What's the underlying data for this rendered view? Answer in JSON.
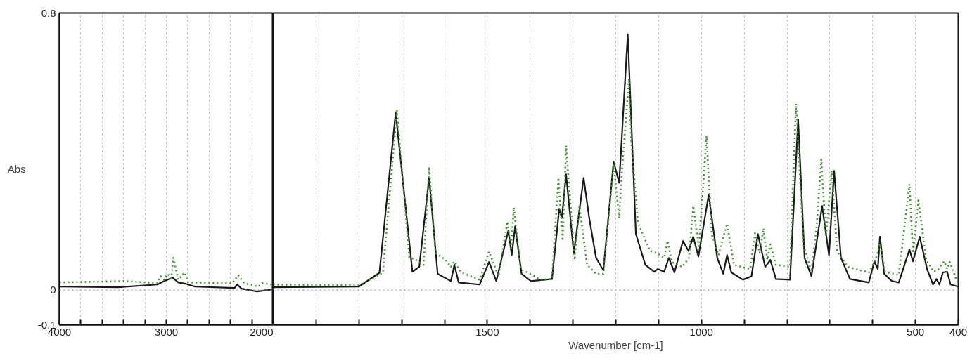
{
  "chart_data": [
    {
      "type": "line",
      "ylabel": "Abs",
      "xlim": [
        4000,
        2000
      ],
      "ylim": [
        -0.1,
        0.8
      ],
      "xticks": [
        4000,
        {
          "value": 3800,
          "label": null
        },
        {
          "value": 3600,
          "label": null
        },
        {
          "value": 3400,
          "label": null
        },
        {
          "value": 3200,
          "label": null
        },
        3000,
        {
          "value": 2800,
          "label": null
        },
        {
          "value": 2600,
          "label": null
        },
        {
          "value": 2400,
          "label": null
        },
        {
          "value": 2200,
          "label": null
        },
        2000
      ],
      "yticks": [
        -0.1,
        0,
        0.8
      ],
      "grid": "x",
      "ref_lines": [
        {
          "axis": "y",
          "value": 0,
          "color": "#999999",
          "line_style": "dotted"
        }
      ],
      "series": [
        {
          "color": "#1a1a1a",
          "line_style": "solid",
          "x": [
            4000,
            3980,
            3454,
            3085,
            3020,
            2941,
            2888,
            2829,
            2730,
            2362,
            2336,
            2296,
            2151,
            2007,
            2000
          ],
          "values": [
            0.01,
            0.01,
            0.008,
            0.016,
            0.026,
            0.036,
            0.022,
            0.019,
            0.01,
            0.006,
            0.016,
            0.004,
            -0.004,
            0.002,
            0.004
          ]
        },
        {
          "color": "#3c9a2c",
          "line_style": "dotted",
          "x": [
            4000,
            3388,
            3085,
            3053,
            3020,
            2987,
            2954,
            2934,
            2888,
            2829,
            2796,
            2382,
            2329,
            2270,
            2138,
            2105,
            2013,
            2000
          ],
          "values": [
            0.022,
            0.026,
            0.02,
            0.04,
            0.03,
            0.047,
            0.034,
            0.093,
            0.03,
            0.051,
            0.022,
            0.02,
            0.043,
            0.02,
            0.01,
            0.02,
            0.016,
            0.016
          ]
        }
      ]
    },
    {
      "type": "line",
      "xlabel": "Wavenumber [cm-1]",
      "xlim": [
        2000,
        400
      ],
      "ylim": [
        -0.1,
        0.8
      ],
      "tick_labels": "x",
      "xticks": [
        {
          "value": 2000,
          "label": null
        },
        {
          "value": 1900,
          "label": null
        },
        {
          "value": 1800,
          "label": null
        },
        {
          "value": 1700,
          "label": null
        },
        {
          "value": 1600,
          "label": null
        },
        1500,
        {
          "value": 1400,
          "label": null
        },
        {
          "value": 1300,
          "label": null
        },
        {
          "value": 1200,
          "label": null
        },
        {
          "value": 1100,
          "label": null
        },
        1000,
        {
          "value": 900,
          "label": null
        },
        {
          "value": 800,
          "label": null
        },
        {
          "value": 700,
          "label": null
        },
        {
          "value": 600,
          "label": null
        },
        500,
        400
      ],
      "yticks": [
        -0.1,
        0,
        0.8
      ],
      "grid": "x",
      "ref_lines": [
        {
          "axis": "y",
          "value": 0,
          "color": "#999999",
          "line_style": "dotted"
        }
      ],
      "series": [
        {
          "color": "#1a1a1a",
          "line_style": "solid",
          "x": [
            2000,
            1800,
            1752,
            1714,
            1675,
            1659,
            1636,
            1616,
            1585,
            1577,
            1567,
            1518,
            1496,
            1479,
            1451,
            1443,
            1435,
            1420,
            1398,
            1349,
            1332,
            1326,
            1316,
            1298,
            1275,
            1262,
            1246,
            1229,
            1205,
            1192,
            1172,
            1153,
            1131,
            1110,
            1102,
            1087,
            1076,
            1063,
            1043,
            1030,
            1019,
            1007,
            983,
            963,
            949,
            940,
            930,
            903,
            883,
            868,
            851,
            839,
            826,
            793,
            774,
            759,
            743,
            718,
            702,
            690,
            674,
            653,
            609,
            596,
            588,
            583,
            573,
            555,
            539,
            514,
            506,
            490,
            473,
            459,
            451,
            444,
            436,
            426,
            418,
            400
          ],
          "values": [
            0.008,
            0.01,
            0.05,
            0.512,
            0.053,
            0.067,
            0.324,
            0.047,
            0.026,
            0.073,
            0.022,
            0.016,
            0.081,
            0.026,
            0.172,
            0.101,
            0.184,
            0.047,
            0.026,
            0.032,
            0.235,
            0.208,
            0.334,
            0.107,
            0.324,
            0.208,
            0.093,
            0.057,
            0.37,
            0.31,
            0.739,
            0.162,
            0.073,
            0.053,
            0.061,
            0.053,
            0.093,
            0.051,
            0.142,
            0.113,
            0.154,
            0.097,
            0.275,
            0.093,
            0.047,
            0.101,
            0.051,
            0.03,
            0.04,
            0.162,
            0.067,
            0.087,
            0.032,
            0.03,
            0.492,
            0.093,
            0.04,
            0.243,
            0.101,
            0.344,
            0.093,
            0.032,
            0.022,
            0.083,
            0.061,
            0.154,
            0.047,
            0.026,
            0.022,
            0.117,
            0.083,
            0.154,
            0.061,
            0.016,
            0.032,
            0.016,
            0.051,
            0.053,
            0.016,
            0.01
          ]
        },
        {
          "color": "#3c9a2c",
          "line_style": "dotted",
          "x": [
            2000,
            1800,
            1744,
            1711,
            1682,
            1670,
            1649,
            1636,
            1621,
            1597,
            1585,
            1577,
            1561,
            1518,
            1496,
            1474,
            1453,
            1445,
            1438,
            1422,
            1406,
            1376,
            1349,
            1334,
            1324,
            1316,
            1296,
            1285,
            1267,
            1246,
            1229,
            1205,
            1192,
            1185,
            1169,
            1164,
            1148,
            1120,
            1104,
            1087,
            1079,
            1069,
            1045,
            1029,
            1019,
            1006,
            988,
            976,
            960,
            940,
            924,
            886,
            875,
            864,
            855,
            846,
            839,
            826,
            793,
            779,
            761,
            743,
            731,
            720,
            709,
            696,
            683,
            658,
            609,
            593,
            583,
            571,
            539,
            514,
            506,
            493,
            475,
            457,
            446,
            433,
            426,
            420,
            400
          ],
          "values": [
            0.016,
            0.014,
            0.05,
            0.518,
            0.093,
            0.09,
            0.073,
            0.356,
            0.107,
            0.087,
            0.067,
            0.083,
            0.051,
            0.03,
            0.111,
            0.04,
            0.198,
            0.121,
            0.239,
            0.061,
            0.051,
            0.03,
            0.032,
            0.324,
            0.142,
            0.417,
            0.087,
            0.243,
            0.073,
            0.047,
            0.047,
            0.364,
            0.208,
            0.356,
            0.609,
            0.431,
            0.194,
            0.113,
            0.107,
            0.093,
            0.142,
            0.081,
            0.067,
            0.093,
            0.243,
            0.121,
            0.445,
            0.162,
            0.101,
            0.192,
            0.073,
            0.061,
            0.164,
            0.107,
            0.178,
            0.087,
            0.132,
            0.073,
            0.067,
            0.538,
            0.128,
            0.053,
            0.182,
            0.377,
            0.154,
            0.344,
            0.113,
            0.067,
            0.051,
            0.087,
            0.134,
            0.053,
            0.043,
            0.306,
            0.107,
            0.259,
            0.087,
            0.053,
            0.061,
            0.083,
            0.061,
            0.081,
            0.016
          ]
        }
      ]
    }
  ]
}
